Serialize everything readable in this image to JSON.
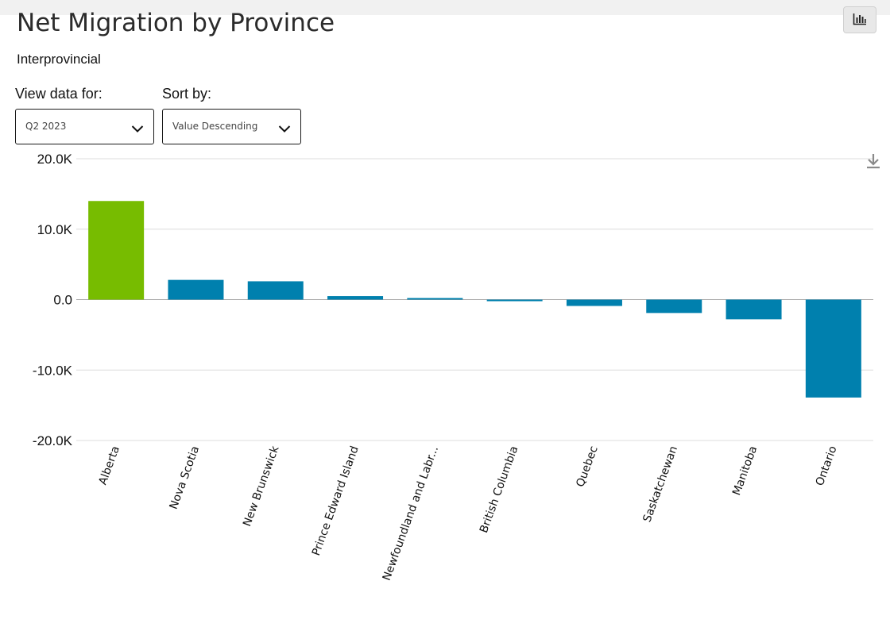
{
  "header": {
    "title": "Net Migration by Province",
    "subtitle": "Interprovincial"
  },
  "controls": {
    "view_label": "View data for:",
    "view_value": "Q2 2023",
    "sort_label": "Sort by:",
    "sort_value": "Value Descending"
  },
  "icons": {
    "chart_type": "bar-chart-icon",
    "download": "download-icon",
    "chevron": "chevron-down-icon"
  },
  "colors": {
    "highlight_bar": "#77bc00",
    "bar": "#0080ae",
    "gridline": "#dcdcdc",
    "zero_line": "#a8a8a8"
  },
  "chart_data": {
    "type": "bar",
    "title": "Net Migration by Province",
    "subtitle": "Interprovincial",
    "categories": [
      "Alberta",
      "Nova Scotia",
      "New Brunswick",
      "Prince Edward Island",
      "Newfoundland and Labr...",
      "British Columbia",
      "Quebec",
      "Saskatchewan",
      "Manitoba",
      "Ontario"
    ],
    "values": [
      14000,
      2800,
      2600,
      500,
      200,
      -200,
      -900,
      -1900,
      -2800,
      -13900
    ],
    "highlight_index": 0,
    "ylim": [
      -20000,
      20000
    ],
    "yticks": [
      20000,
      10000,
      0,
      -10000,
      -20000
    ],
    "ytick_labels": [
      "20.0K",
      "10.0K",
      "0.0",
      "-10.0K",
      "-20.0K"
    ],
    "xlabel": "",
    "ylabel": "",
    "grid": true,
    "legend": "none"
  }
}
